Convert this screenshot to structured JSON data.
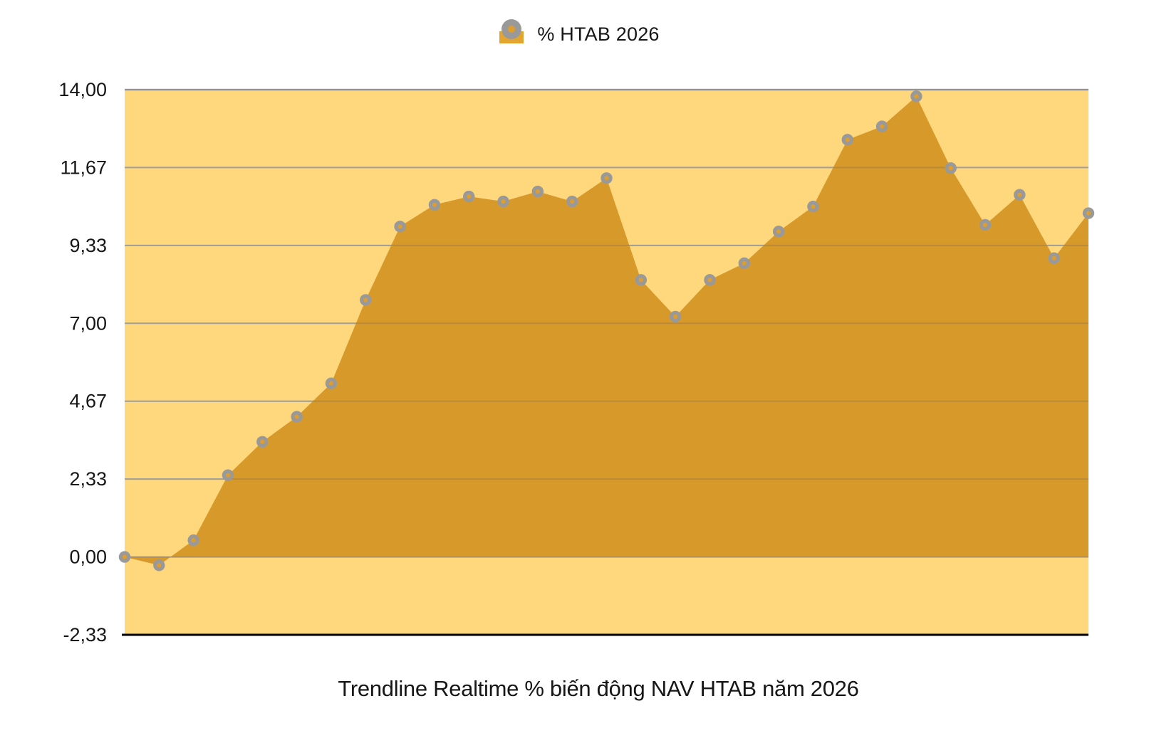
{
  "legend": {
    "label": "% HTAB 2026",
    "swatch_color": "#E3A52F",
    "marker_ring_color": "#999999",
    "marker_center_color": "#DD9E2F"
  },
  "title": {
    "text": "Trendline Realtime % biến động NAV HTAB năm 2026"
  },
  "chart_data": {
    "type": "area",
    "title": "Trendline Realtime % biến động NAV HTAB năm 2026",
    "series": [
      {
        "name": "% HTAB 2026",
        "values": [
          0.0,
          -0.25,
          0.5,
          2.45,
          3.45,
          4.2,
          5.2,
          7.7,
          9.9,
          10.55,
          10.8,
          10.65,
          10.95,
          10.65,
          11.35,
          8.3,
          7.2,
          8.3,
          8.8,
          9.75,
          10.5,
          12.5,
          12.9,
          13.8,
          11.65,
          9.95,
          10.85,
          8.95,
          10.3
        ]
      }
    ],
    "point_count": 29,
    "xticks_shown": false,
    "xlabel": "",
    "ylabel": "",
    "ylim": [
      -2.3333,
      14.0
    ],
    "yticks": [
      {
        "value": 14.0,
        "label": "14,00"
      },
      {
        "value": 11.6667,
        "label": "11,67"
      },
      {
        "value": 9.3333,
        "label": "9,33"
      },
      {
        "value": 7.0,
        "label": "7,00"
      },
      {
        "value": 4.6667,
        "label": "4,67"
      },
      {
        "value": 2.3333,
        "label": "2,33"
      },
      {
        "value": 0.0,
        "label": "0,00"
      },
      {
        "value": -2.3333,
        "label": "-2,33"
      }
    ],
    "baseline_value": 0,
    "grid": "horizontal",
    "legend_position": "top-center",
    "colors": {
      "plot_background": "#FFD87E",
      "area_fill": "#D8992B",
      "marker_ring": "#999999",
      "marker_center": "#DD9E2F",
      "gridline": "#B5B5B5",
      "top_gridline": "#A6A6A6",
      "axis_line": "#000000",
      "text": "#161616"
    }
  }
}
